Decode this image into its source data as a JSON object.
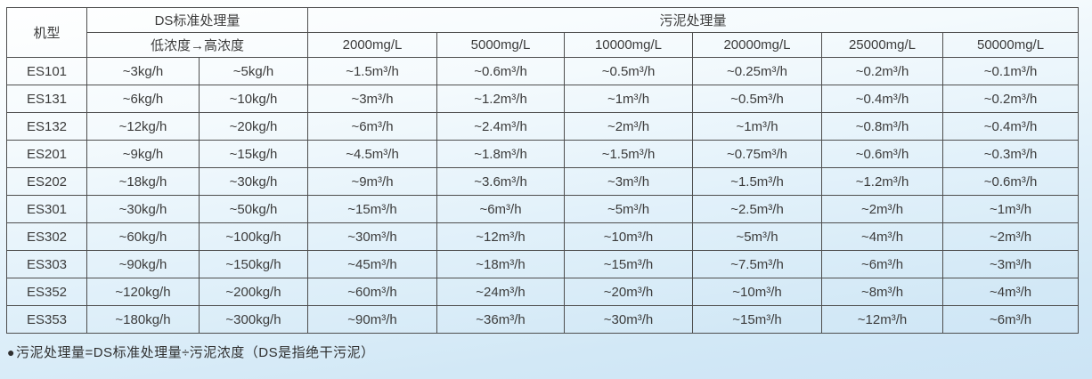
{
  "table": {
    "header": {
      "model": "机型",
      "ds_group": "DS标准处理量",
      "ds_sub": "低浓度→高浓度",
      "sludge_group": "污泥处理量",
      "concentrations": [
        "2000mg/L",
        "5000mg/L",
        "10000mg/L",
        "20000mg/L",
        "25000mg/L",
        "50000mg/L"
      ]
    },
    "rows": [
      {
        "model": "ES101",
        "ds_low": "~3kg/h",
        "ds_high": "~5kg/h",
        "values": [
          "~1.5m³/h",
          "~0.6m³/h",
          "~0.5m³/h",
          "~0.25m³/h",
          "~0.2m³/h",
          "~0.1m³/h"
        ]
      },
      {
        "model": "ES131",
        "ds_low": "~6kg/h",
        "ds_high": "~10kg/h",
        "values": [
          "~3m³/h",
          "~1.2m³/h",
          "~1m³/h",
          "~0.5m³/h",
          "~0.4m³/h",
          "~0.2m³/h"
        ]
      },
      {
        "model": "ES132",
        "ds_low": "~12kg/h",
        "ds_high": "~20kg/h",
        "values": [
          "~6m³/h",
          "~2.4m³/h",
          "~2m³/h",
          "~1m³/h",
          "~0.8m³/h",
          "~0.4m³/h"
        ]
      },
      {
        "model": "ES201",
        "ds_low": "~9kg/h",
        "ds_high": "~15kg/h",
        "values": [
          "~4.5m³/h",
          "~1.8m³/h",
          "~1.5m³/h",
          "~0.75m³/h",
          "~0.6m³/h",
          "~0.3m³/h"
        ]
      },
      {
        "model": "ES202",
        "ds_low": "~18kg/h",
        "ds_high": "~30kg/h",
        "values": [
          "~9m³/h",
          "~3.6m³/h",
          "~3m³/h",
          "~1.5m³/h",
          "~1.2m³/h",
          "~0.6m³/h"
        ]
      },
      {
        "model": "ES301",
        "ds_low": "~30kg/h",
        "ds_high": "~50kg/h",
        "values": [
          "~15m³/h",
          "~6m³/h",
          "~5m³/h",
          "~2.5m³/h",
          "~2m³/h",
          "~1m³/h"
        ]
      },
      {
        "model": "ES302",
        "ds_low": "~60kg/h",
        "ds_high": "~100kg/h",
        "values": [
          "~30m³/h",
          "~12m³/h",
          "~10m³/h",
          "~5m³/h",
          "~4m³/h",
          "~2m³/h"
        ]
      },
      {
        "model": "ES303",
        "ds_low": "~90kg/h",
        "ds_high": "~150kg/h",
        "values": [
          "~45m³/h",
          "~18m³/h",
          "~15m³/h",
          "~7.5m³/h",
          "~6m³/h",
          "~3m³/h"
        ]
      },
      {
        "model": "ES352",
        "ds_low": "~120kg/h",
        "ds_high": "~200kg/h",
        "values": [
          "~60m³/h",
          "~24m³/h",
          "~20m³/h",
          "~10m³/h",
          "~8m³/h",
          "~4m³/h"
        ]
      },
      {
        "model": "ES353",
        "ds_low": "~180kg/h",
        "ds_high": "~300kg/h",
        "values": [
          "~90m³/h",
          "~36m³/h",
          "~30m³/h",
          "~15m³/h",
          "~12m³/h",
          "~6m³/h"
        ]
      }
    ]
  },
  "note": {
    "bullet": "●",
    "text": "污泥处理量=DS标准处理量÷污泥浓度（DS是指绝干污泥）"
  },
  "colors": {
    "background_top": "#ffffff",
    "background_bottom": "#cce4f5",
    "border": "#4e4e4e",
    "text": "#3c3c3c"
  }
}
